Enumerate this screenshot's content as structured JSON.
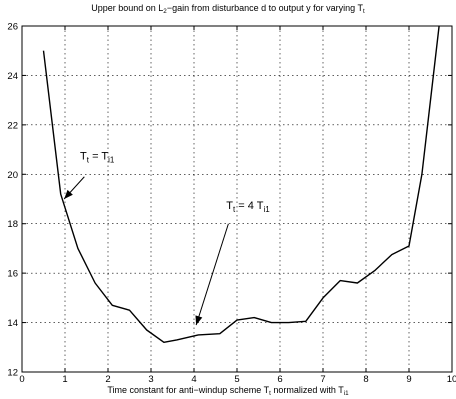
{
  "chart_data": {
    "type": "line",
    "title": {
      "t1": "Upper bound on L",
      "t1_sub": "2",
      "t2": "−gain from disturbance d to output y for varying T",
      "t2_sub": "t"
    },
    "xlabel": {
      "t1": "Time constant for anti−windup scheme T",
      "t1_sub": "t",
      "t2": " normalized with T",
      "t2_sub": "i1"
    },
    "xlim": [
      0,
      10
    ],
    "ylim": [
      12,
      26
    ],
    "xticks": [
      0,
      1,
      2,
      3,
      4,
      5,
      6,
      7,
      8,
      9,
      10
    ],
    "yticks": [
      12,
      14,
      16,
      18,
      20,
      22,
      24,
      26
    ],
    "grid": true,
    "series": [
      {
        "x": [
          0.5,
          0.9,
          1.3,
          1.7,
          2.1,
          2.5,
          2.9,
          3.3,
          3.6,
          4.1,
          4.6,
          5.0,
          5.4,
          5.8,
          6.2,
          6.6,
          7.0,
          7.4,
          7.8,
          8.2,
          8.6,
          9.0,
          9.3,
          9.7
        ],
        "y": [
          25.0,
          19.2,
          17.0,
          15.6,
          14.7,
          14.5,
          13.7,
          13.2,
          13.3,
          13.5,
          13.55,
          14.1,
          14.2,
          14.0,
          14.0,
          14.05,
          15.0,
          15.7,
          15.6,
          16.1,
          16.75,
          17.1,
          20.0,
          26.0
        ],
        "color": "#000000"
      }
    ],
    "annotations": [
      {
        "main": "T",
        "sub1": "t",
        "mid": " = T",
        "sub2": "i1",
        "arrow_from": [
          1.45,
          19.9
        ],
        "arrow_to": [
          0.98,
          19.0
        ],
        "text_at": [
          1.35,
          20.6
        ]
      },
      {
        "main": "T",
        "sub1": "t",
        "mid": " = 4 T",
        "sub2": "i1",
        "arrow_from": [
          4.8,
          18.0
        ],
        "arrow_to": [
          4.05,
          13.9
        ],
        "text_at": [
          4.75,
          18.6
        ]
      }
    ]
  }
}
